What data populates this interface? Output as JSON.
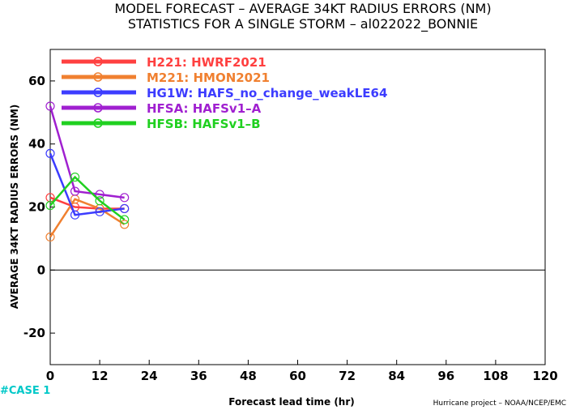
{
  "chart_data": {
    "type": "line",
    "title": "MODEL FORECAST – AVERAGE 34KT RADIUS ERRORS (NM)",
    "subtitle": "STATISTICS FOR A SINGLE STORM – al022022_BONNIE",
    "xlabel": "Forecast lead time (hr)",
    "ylabel": "AVERAGE 34KT RADIUS ERRORS (NM)",
    "xlim": [
      0,
      120
    ],
    "ylim": [
      -30,
      70
    ],
    "xticks": [
      0,
      12,
      24,
      36,
      48,
      60,
      72,
      84,
      96,
      108,
      120
    ],
    "yticks": [
      -20,
      0,
      20,
      40,
      60
    ],
    "zero_line": true,
    "legend_position": "top-left",
    "series": [
      {
        "name": "H221: HWRF2021",
        "color": "#ff4040",
        "x": [
          0,
          6,
          12,
          18
        ],
        "y": [
          23,
          20,
          19.5,
          19.5
        ]
      },
      {
        "name": "M221: HMON2021",
        "color": "#f08030",
        "x": [
          0,
          6,
          12,
          18
        ],
        "y": [
          10.5,
          22.5,
          19.5,
          14.5
        ]
      },
      {
        "name": "HG1W: HAFS_no_change_weakLE64",
        "color": "#3c3cff",
        "x": [
          0,
          6,
          12,
          18
        ],
        "y": [
          37,
          17.5,
          18.5,
          19.5
        ]
      },
      {
        "name": "HFSA: HAFSv1–A",
        "color": "#a020d0",
        "x": [
          0,
          6,
          12,
          18
        ],
        "y": [
          52,
          25,
          24,
          23
        ]
      },
      {
        "name": "HFSB: HAFSv1–B",
        "color": "#20d020",
        "x": [
          0,
          6,
          12,
          18
        ],
        "y": [
          20.5,
          29.5,
          22,
          16
        ]
      }
    ]
  },
  "annotations": {
    "case": "#CASE  1",
    "credit": "Hurricane project – NOAA/NCEP/EMC"
  }
}
